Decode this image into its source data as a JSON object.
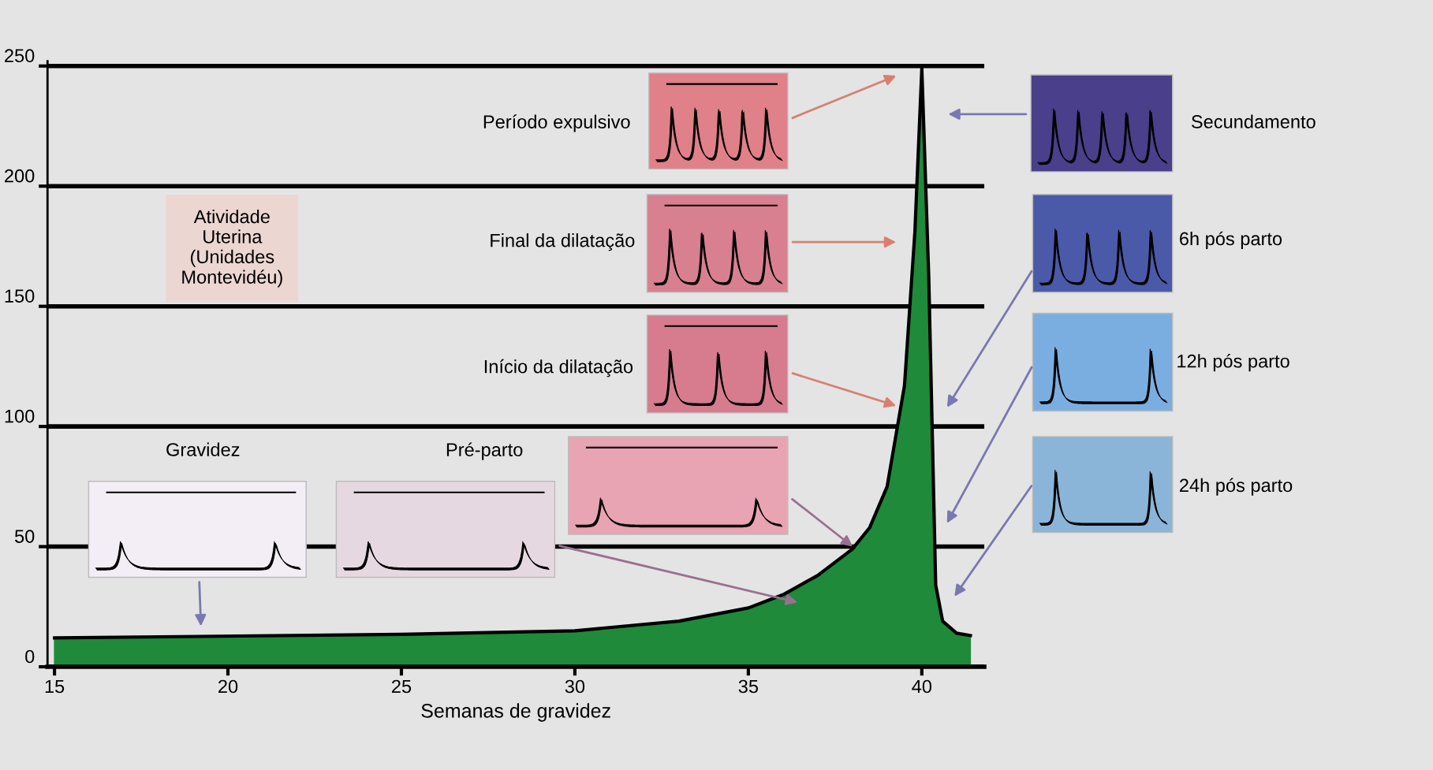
{
  "chart_data": {
    "type": "area",
    "xlabel": "Semanas de gravidez",
    "ylabel": "Atividade Uterina (Unidades Montevidéu)",
    "x": [
      15,
      25,
      30,
      33,
      35,
      36,
      37,
      38,
      38.5,
      39,
      39.5,
      39.8,
      40,
      40.2,
      40.4,
      40.6,
      41,
      41.4
    ],
    "values": [
      12,
      13.5,
      15,
      19,
      24.5,
      30,
      38,
      49,
      58,
      75,
      117,
      181,
      249,
      162,
      34,
      19,
      14,
      13
    ],
    "color": "#1e8a3a",
    "xlim": [
      14.8,
      41.8
    ],
    "ylim": [
      0,
      252
    ],
    "xticks": [
      15,
      20,
      25,
      30,
      35,
      40
    ],
    "yticks": [
      0,
      50,
      100,
      150,
      200,
      250
    ],
    "grid": "y",
    "annotations": [
      "Período expulsivo",
      "Final da dilatação",
      "Início da dilatação",
      "Gravidez",
      "Pré-parto",
      "Secundamento",
      "6h pós parto",
      "12h pós parto",
      "24h pós parto"
    ]
  }
}
